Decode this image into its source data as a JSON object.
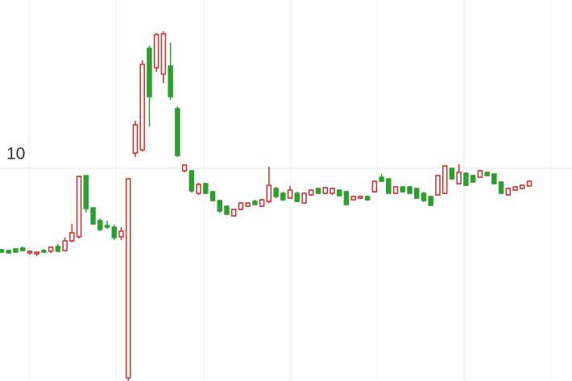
{
  "chart_data": {
    "type": "candlestick",
    "up_color": "#d42a2a",
    "down_color": "#2e9e2e",
    "ylim": [
      4.72,
      14.18
    ],
    "yticks": [
      10
    ],
    "grid": true,
    "open": [
      7.98,
      7.96,
      8.0,
      8.02,
      7.9,
      7.88,
      7.96,
      7.94,
      8.06,
      7.96,
      8.2,
      8.3,
      9.82,
      9.02,
      8.7,
      8.58,
      8.54,
      8.3,
      4.8,
      10.38,
      10.46,
      12.98,
      12.5,
      12.34,
      12.54,
      11.48,
      9.94,
      9.94,
      9.38,
      9.62,
      9.42,
      9.2,
      9.06,
      8.82,
      8.98,
      9.06,
      9.18,
      9.06,
      9.18,
      9.5,
      9.38,
      9.26,
      9.38,
      9.14,
      9.34,
      9.5,
      9.38,
      9.38,
      9.46,
      9.42,
      9.22,
      9.26,
      9.3,
      9.42,
      9.78,
      9.74,
      9.38,
      9.54,
      9.54,
      9.5,
      9.38,
      9.3,
      9.34,
      9.38,
      10.0,
      9.62,
      9.88,
      9.82,
      9.78,
      9.9,
      9.86,
      9.66,
      9.34,
      9.46,
      9.5,
      9.56
    ],
    "high": [
      8.0,
      7.98,
      8.02,
      8.06,
      7.96,
      7.94,
      8.0,
      8.06,
      8.12,
      8.28,
      8.62,
      9.82,
      9.82,
      9.02,
      8.76,
      8.7,
      8.6,
      8.54,
      9.74,
      11.18,
      12.68,
      13.04,
      13.36,
      13.4,
      13.12,
      11.54,
      10.1,
      9.96,
      9.64,
      9.64,
      9.44,
      9.22,
      9.08,
      9.0,
      9.16,
      9.16,
      9.22,
      9.24,
      10.04,
      9.54,
      9.42,
      9.56,
      9.42,
      9.4,
      9.48,
      9.52,
      9.54,
      9.52,
      9.48,
      9.44,
      9.32,
      9.32,
      9.32,
      9.7,
      9.86,
      9.76,
      9.56,
      9.56,
      9.56,
      9.52,
      9.42,
      9.32,
      9.84,
      10.08,
      10.02,
      10.1,
      9.9,
      9.84,
      9.96,
      9.92,
      9.88,
      9.68,
      9.52,
      9.56,
      9.6,
      9.7
    ],
    "low": [
      7.9,
      7.88,
      7.9,
      7.94,
      7.86,
      7.82,
      7.9,
      7.9,
      7.92,
      7.94,
      8.16,
      8.26,
      8.9,
      8.6,
      8.44,
      8.5,
      8.22,
      8.22,
      4.72,
      10.28,
      10.42,
      11.04,
      12.4,
      12.12,
      11.7,
      10.28,
      9.9,
      9.4,
      9.34,
      9.36,
      9.18,
      8.9,
      8.84,
      8.8,
      8.96,
      9.04,
      9.08,
      9.04,
      9.14,
      9.26,
      9.2,
      9.24,
      9.16,
      9.12,
      9.32,
      9.36,
      9.36,
      9.34,
      9.3,
      9.08,
      9.2,
      9.24,
      9.2,
      9.4,
      9.66,
      9.36,
      9.36,
      9.4,
      9.36,
      9.24,
      9.16,
      9.06,
      9.32,
      9.36,
      9.72,
      9.6,
      9.56,
      9.64,
      9.76,
      9.8,
      9.6,
      9.36,
      9.32,
      9.44,
      9.48,
      9.54
    ],
    "close": [
      7.92,
      7.9,
      7.92,
      7.96,
      7.94,
      7.92,
      7.92,
      8.04,
      7.94,
      8.2,
      8.4,
      9.8,
      9.0,
      8.62,
      8.48,
      8.54,
      8.28,
      8.44,
      9.74,
      11.08,
      12.58,
      11.78,
      13.32,
      13.34,
      11.78,
      10.32,
      10.08,
      9.44,
      9.6,
      9.38,
      9.2,
      8.94,
      8.86,
      8.98,
      9.14,
      9.14,
      9.1,
      9.22,
      9.58,
      9.3,
      9.22,
      9.46,
      9.18,
      9.38,
      9.46,
      9.38,
      9.52,
      9.5,
      9.32,
      9.1,
      9.3,
      9.3,
      9.22,
      9.68,
      9.68,
      9.38,
      9.54,
      9.42,
      9.38,
      9.26,
      9.2,
      9.08,
      9.82,
      10.06,
      9.74,
      9.9,
      9.58,
      9.66,
      9.94,
      9.82,
      9.62,
      9.38,
      9.5,
      9.54,
      9.58,
      9.68
    ]
  }
}
